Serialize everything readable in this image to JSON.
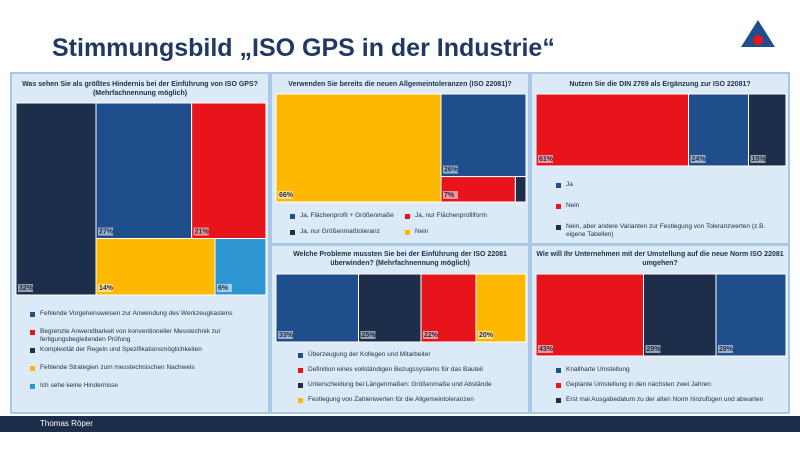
{
  "title": "Stimmungsbild „ISO GPS in der Industrie“",
  "footer": "Thomas Röper",
  "chart_data": [
    {
      "type": "treemap",
      "title": "Was sehen Sie als größtes Hindernis bei der Einführung von ISO GPS? (Mehrfachnennung möglich)",
      "categories": [
        "Fehlende Vorgehensweisen zur Anwendung des Werkzeugkastens",
        "Begrenzte Anwendbarkeit von konventioneller Messtechnik zur fertigungsbegleitenden Prüfung",
        "Komplexität der Regeln und Spezifikationsmöglichkeiten",
        "Fehlende Strategien zum messtechnischen Nachweis",
        "Ich sehe keine Hindernisse"
      ],
      "values": [
        27,
        21,
        32,
        14,
        6
      ],
      "value_labels": [
        "27%",
        "21%",
        "32%",
        "14%",
        "6%"
      ],
      "colors": [
        "#1f4e8c",
        "#e8141c",
        "#1c2e4a",
        "#ffb800",
        "#2e95d3"
      ]
    },
    {
      "type": "treemap",
      "title": "Verwenden Sie bereits die neuen Allgemeintoleranzen (ISO 22081)?",
      "categories": [
        "Ja, Flächenprofil + Größenmaße",
        "Ja, nur Flächenprofilform",
        "Ja, nur Größenmaßtoleranz",
        "Nein"
      ],
      "values": [
        26,
        7,
        1,
        66
      ],
      "value_labels": [
        "26%",
        "7%",
        null,
        "66%"
      ],
      "colors": [
        "#1f4e8c",
        "#e8141c",
        "#1c2e4a",
        "#ffb800"
      ]
    },
    {
      "type": "treemap",
      "title": "Nutzen Sie die DIN 2769 als Ergänzung zur ISO 22081?",
      "categories": [
        "Ja",
        "Nein",
        "Nein, aber andere Varianten zur Festlegung von Toleranzwerten (z.B. eigene Tabellen)"
      ],
      "values": [
        24,
        61,
        15
      ],
      "value_labels": [
        "24%",
        "61%",
        "15%"
      ],
      "colors": [
        "#1f4e8c",
        "#e8141c",
        "#1c2e4a"
      ]
    },
    {
      "type": "treemap",
      "title": "Welche Probleme mussten Sie bei der Einführung der ISO 22081 überwinden? (Mehrfachnennung möglich)",
      "categories": [
        "Überzeugung der Kollegen und Mitarbeiter",
        "Definition eines vollständigen Bezugssystems für das Bauteil",
        "Unterscheidung bei Längenmaßen: Größenmaße und Abstände",
        "Festlegung von Zahlenwerten für die Allgemeintoleranzen"
      ],
      "values": [
        33,
        22,
        25,
        20
      ],
      "value_labels": [
        "33%",
        "22%",
        "25%",
        "20%"
      ],
      "colors": [
        "#1f4e8c",
        "#e8141c",
        "#1c2e4a",
        "#ffb800"
      ]
    },
    {
      "type": "treemap",
      "title": "Wie will Ihr Unternehmen mit der Umstellung auf die neue Norm ISO 22081 umgehen?",
      "categories": [
        "Knallharte Umstellung",
        "Geplante Umstellung in den nächsten zwei Jahren",
        "Erst mal Ausgabedatum zu der alten Norm hinzufügen und abwarten"
      ],
      "values": [
        28,
        43,
        29
      ],
      "value_labels": [
        "28%",
        "43%",
        "29%"
      ],
      "colors": [
        "#1f4e8c",
        "#e8141c",
        "#1c2e4a"
      ]
    }
  ]
}
